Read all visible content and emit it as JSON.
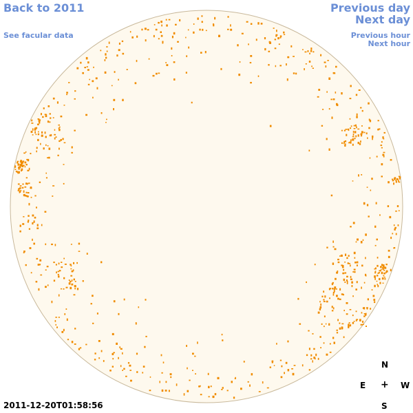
{
  "nav": {
    "back_label": "Back to 2011",
    "facular_label": "See facular data",
    "prev_day_label": "Previous day",
    "next_day_label": "Next day",
    "prev_hour_label": "Previous hour",
    "next_hour_label": "Next hour"
  },
  "compass": {
    "north": "N",
    "east": "E",
    "center": "+",
    "west": "W",
    "south": "S"
  },
  "timestamp": "2011-12-20T01:58:56",
  "colors": {
    "link": "#6b8fd6",
    "disk_fill": "#fef9ee",
    "disk_stroke": "#c8b89a",
    "facula": "#f08c00"
  }
}
